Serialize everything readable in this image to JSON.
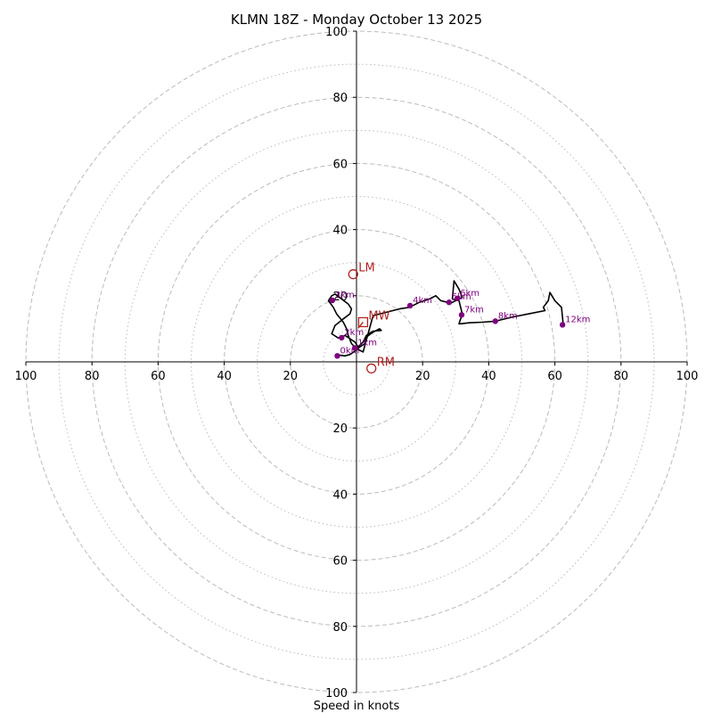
{
  "chart_data": {
    "type": "hodograph",
    "title": "KLMN 18Z - Monday October 13 2025",
    "xlabel": "Speed in knots",
    "range": [
      -100,
      100
    ],
    "major_rings": [
      20,
      40,
      60,
      80,
      100
    ],
    "minor_rings": [
      10,
      30,
      50,
      70,
      90
    ],
    "tick_labels": [
      "100",
      "80",
      "60",
      "40",
      "20",
      "20",
      "40",
      "60",
      "80",
      "100"
    ],
    "y_tick_labels": [
      "100",
      "80",
      "60",
      "40",
      "20",
      "20",
      "40",
      "60",
      "80",
      "100"
    ],
    "line_color": "#000000",
    "marker_color": "#800080",
    "storm_color": "#b22222",
    "grid_color": "#bbbbbb",
    "hodograph": {
      "u": [
        -5.8,
        -5.0,
        -3.5,
        -2.0,
        -0.5,
        1.0,
        2.5,
        3.0,
        5.0,
        7.0,
        7.5,
        5.0,
        3.0,
        2.0,
        0.5,
        -0.5,
        -2.0,
        -3.5,
        -4.5,
        -5.5,
        -7.5,
        -6.5,
        -4.0,
        -2.0,
        -1.5,
        -2.5,
        -4.5,
        -6.5,
        -7.5,
        -8.5,
        -7.0,
        -6.0,
        -4.0,
        -3.0,
        -2.5,
        -1.5,
        0.0,
        2.0,
        5.0,
        9.0,
        13.0,
        16.0,
        19.0,
        22.0,
        24.0,
        25.5,
        27.5,
        28.0,
        31.0,
        32.0,
        31.0,
        29.5,
        29.0,
        31.0,
        32.0,
        31.0,
        31.5,
        34.0,
        38.0,
        42.0,
        47.0,
        52.0,
        57.0,
        56.5,
        58.0,
        58.5,
        60.0,
        62.0,
        62.5
      ],
      "v": [
        1.8,
        2.0,
        1.8,
        2.2,
        3.2,
        4.5,
        5.5,
        7.5,
        9.0,
        10.0,
        9.5,
        9.3,
        8.0,
        6.0,
        4.5,
        6.0,
        7.0,
        8.0,
        7.5,
        7.2,
        8.5,
        11.0,
        13.0,
        14.5,
        16.0,
        17.5,
        19.0,
        20.5,
        20.0,
        18.5,
        16.5,
        14.5,
        12.0,
        10.0,
        8.0,
        5.5,
        4.0,
        3.0,
        14.0,
        15.0,
        16.0,
        16.5,
        18.0,
        19.0,
        20.0,
        18.5,
        18.0,
        17.5,
        19.0,
        19.5,
        22.0,
        24.5,
        19.0,
        18.5,
        14.5,
        11.5,
        11.5,
        11.8,
        12.0,
        12.3,
        13.5,
        14.5,
        15.5,
        16.5,
        18.5,
        21.0,
        18.5,
        16.5,
        11.5
      ],
      "points": [
        {
          "u": -5.8,
          "v": 1.8,
          "label": "0km"
        },
        {
          "u": -0.5,
          "v": 4.2,
          "label": "1km"
        },
        {
          "u": -4.5,
          "v": 7.3,
          "label": "2km"
        },
        {
          "u": -7.3,
          "v": 18.6,
          "label": "3km"
        },
        {
          "u": 16.2,
          "v": 17.0,
          "label": "4km"
        },
        {
          "u": 28.0,
          "v": 18.0,
          "label": "5km"
        },
        {
          "u": 30.5,
          "v": 19.2,
          "label": "6km"
        },
        {
          "u": 31.8,
          "v": 14.2,
          "label": "7km"
        },
        {
          "u": 42.0,
          "v": 12.3,
          "label": "8km"
        },
        {
          "u": 62.3,
          "v": 11.2,
          "label": "12km"
        }
      ]
    },
    "storm_motion": [
      {
        "label": "LM",
        "u": -1.0,
        "v": 26.5,
        "marker": "circle"
      },
      {
        "label": "MW",
        "u": 2.0,
        "v": 12.0,
        "marker": "square"
      },
      {
        "label": "RM",
        "u": 4.5,
        "v": -2.0,
        "marker": "circle"
      }
    ],
    "storm_links": [
      {
        "from": "MW",
        "u2": 0.5,
        "v2": 10.2
      }
    ]
  }
}
